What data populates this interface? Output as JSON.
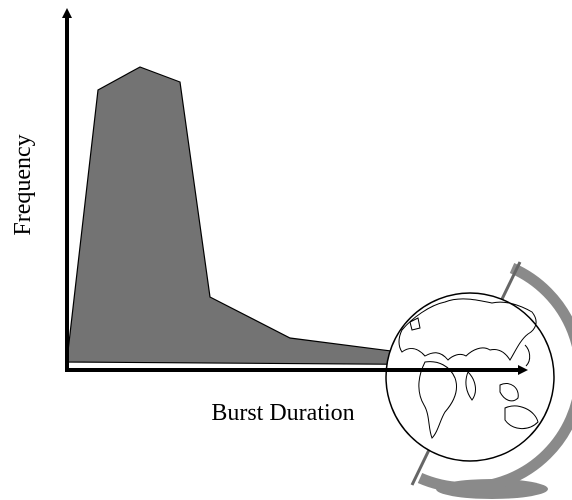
{
  "axes": {
    "y_label": "Frequency",
    "x_label": "Burst Duration"
  }
}
